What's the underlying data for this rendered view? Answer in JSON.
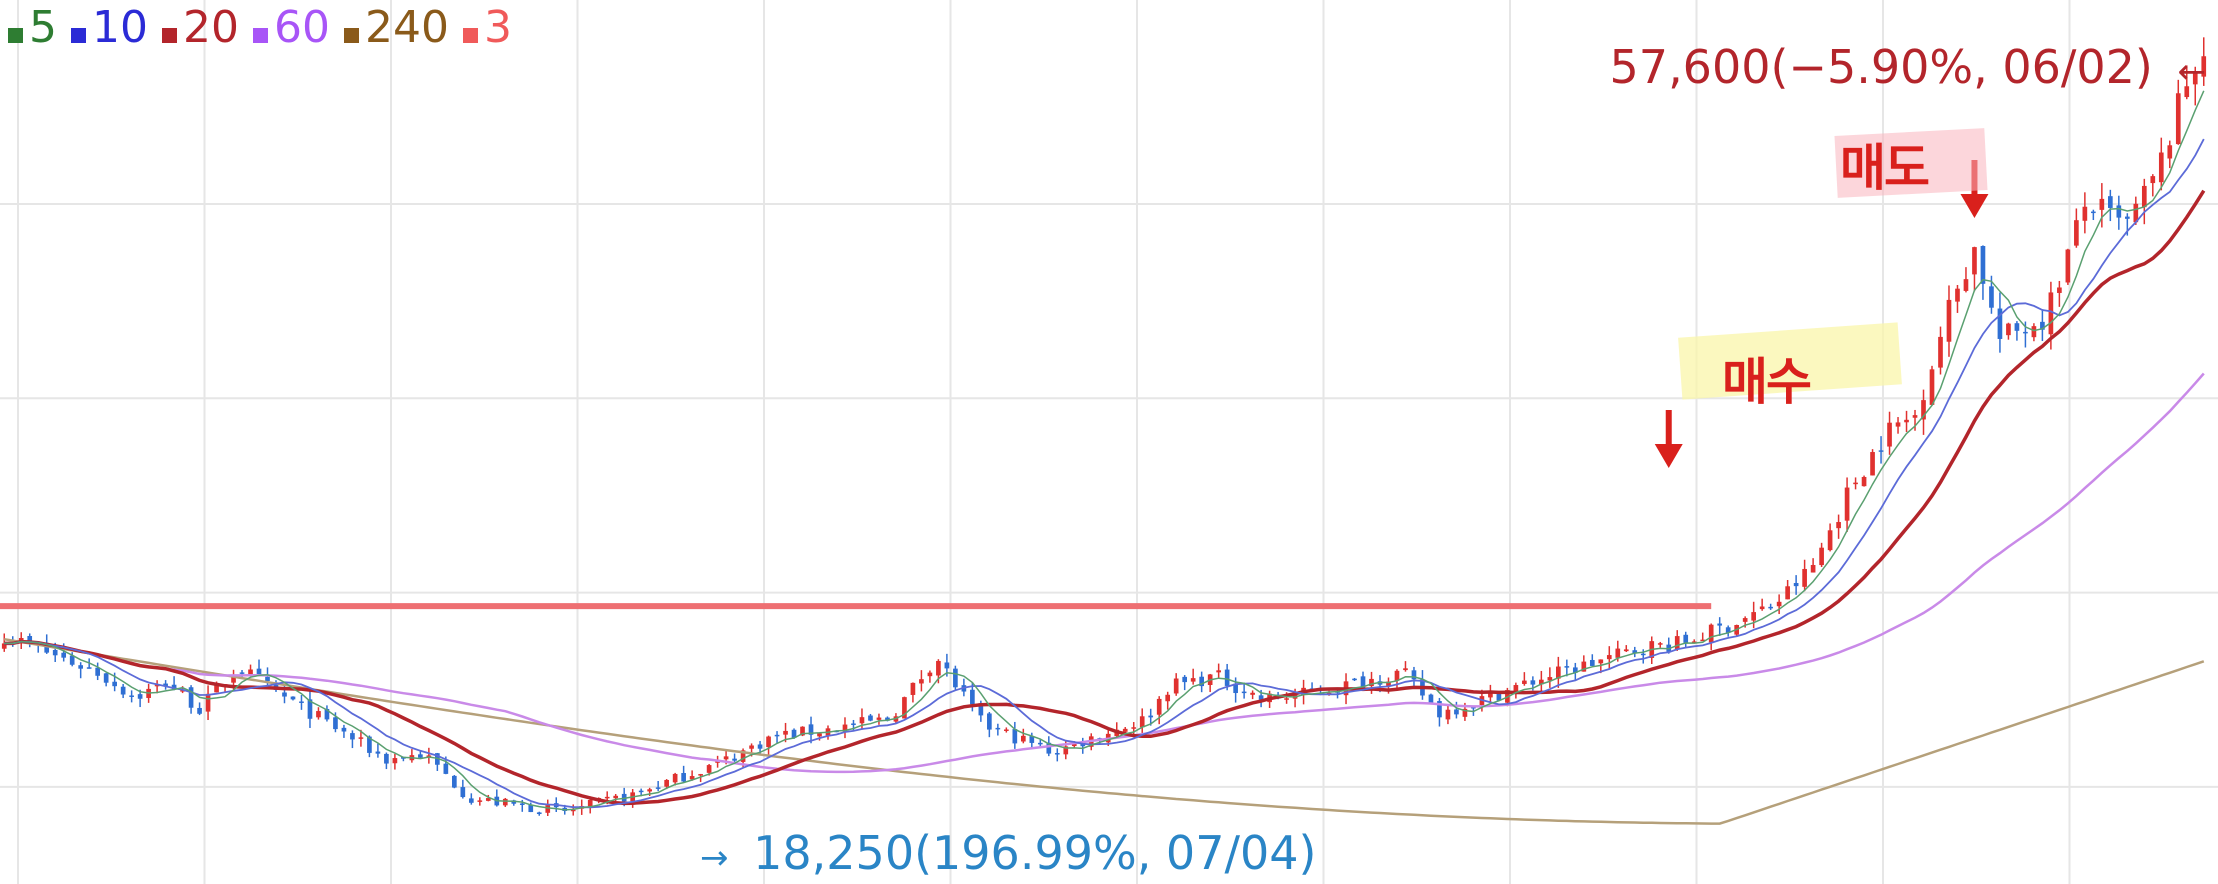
{
  "chart_data": {
    "type": "candlestick",
    "legend": [
      {
        "label": "5",
        "color": "#2e7d32"
      },
      {
        "label": "10",
        "color": "#2b2bd6"
      },
      {
        "label": "20",
        "color": "#b3252b"
      },
      {
        "label": "60",
        "color": "#a855f7"
      },
      {
        "label": "240",
        "color": "#8a5a1a"
      },
      {
        "label": "3",
        "color": "#f05a5a"
      }
    ],
    "high_label": "57,600(−5.90%, 06/02)",
    "high_arrow": "←",
    "low_label": "18,250(196.99%, 07/04)",
    "low_arrow": "→",
    "annotations": {
      "sell": "매도",
      "buy": "매수"
    },
    "ylim": [
      15000,
      60500
    ],
    "n_candles": 260,
    "horizontal_line_price": 29300,
    "sell_index": 232,
    "buy_index": 196,
    "anchors": [
      [
        0,
        27800
      ],
      [
        20,
        25900
      ],
      [
        28,
        24600
      ],
      [
        35,
        25400
      ],
      [
        42,
        24000
      ],
      [
        50,
        26200
      ],
      [
        58,
        24900
      ],
      [
        68,
        23500
      ],
      [
        82,
        21400
      ],
      [
        90,
        21700
      ],
      [
        100,
        19400
      ],
      [
        120,
        18700
      ],
      [
        135,
        19600
      ],
      [
        155,
        21400
      ],
      [
        165,
        22600
      ],
      [
        175,
        22900
      ],
      [
        190,
        23500
      ],
      [
        200,
        26700
      ],
      [
        210,
        23200
      ],
      [
        225,
        21800
      ],
      [
        245,
        23500
      ],
      [
        250,
        25200
      ],
      [
        260,
        25700
      ],
      [
        270,
        24500
      ],
      [
        280,
        24800
      ],
      [
        300,
        25900
      ],
      [
        308,
        23800
      ],
      [
        317,
        24500
      ],
      [
        330,
        25600
      ],
      [
        352,
        27200
      ],
      [
        360,
        27400
      ],
      [
        372,
        28500
      ],
      [
        380,
        29400
      ],
      [
        388,
        31300
      ],
      [
        396,
        35300
      ],
      [
        404,
        38300
      ],
      [
        410,
        39100
      ],
      [
        418,
        45100
      ],
      [
        423,
        47800
      ],
      [
        428,
        43000
      ],
      [
        438,
        44200
      ],
      [
        447,
        50200
      ],
      [
        455,
        48700
      ],
      [
        462,
        51500
      ],
      [
        468,
        56000
      ],
      [
        472,
        58200
      ]
    ],
    "colors": {
      "up": "#e0312f",
      "down": "#2f6fd3",
      "ma5": "#5aa070",
      "ma10": "#5c6bd8",
      "ma20": "#b3252b",
      "ma60": "#c98ae8",
      "ma240": "#b5a07a",
      "hline": "#ee6f72",
      "grid": "#e6e6e6"
    }
  }
}
